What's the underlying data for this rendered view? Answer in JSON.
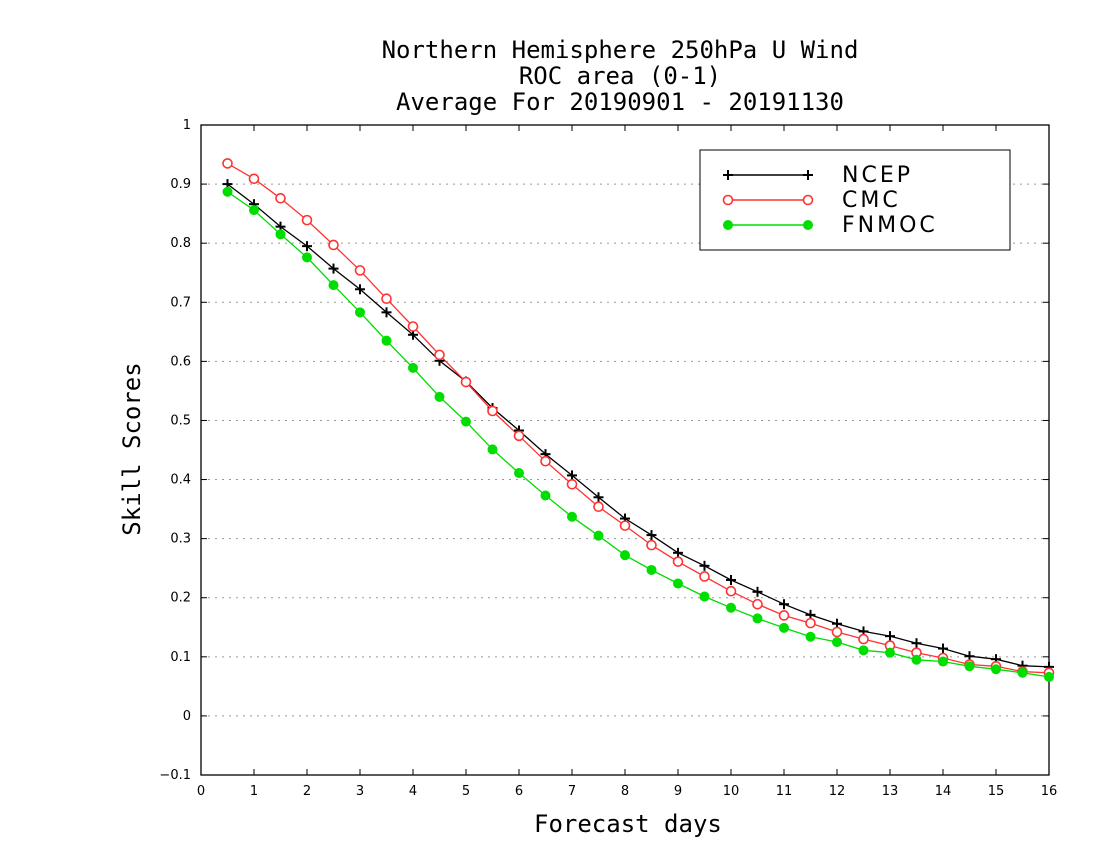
{
  "chart_data": {
    "type": "line",
    "title": [
      "Northern Hemisphere 250hPa U Wind",
      "ROC area (0-1)",
      "Average For 20190901 - 20191130"
    ],
    "xlabel": "Forecast days",
    "ylabel": "Skill Scores",
    "xlim": [
      0,
      16
    ],
    "ylim": [
      -0.1,
      1
    ],
    "xticks": [
      "0",
      "1",
      "2",
      "3",
      "4",
      "5",
      "6",
      "7",
      "8",
      "9",
      "10",
      "11",
      "12",
      "13",
      "14",
      "15",
      "16"
    ],
    "yticks": [
      "−0.1",
      "0",
      "0.1",
      "0.2",
      "0.3",
      "0.4",
      "0.5",
      "0.6",
      "0.7",
      "0.8",
      "0.9",
      "1"
    ],
    "grid": "horizontal dotted",
    "legend_position": "top-right",
    "x": [
      0.5,
      1,
      1.5,
      2,
      2.5,
      3,
      3.5,
      4,
      4.5,
      5,
      5.5,
      6,
      6.5,
      7,
      7.5,
      8,
      8.5,
      9,
      9.5,
      10,
      10.5,
      11,
      11.5,
      12,
      12.5,
      13,
      13.5,
      14,
      14.5,
      15,
      15.5,
      16
    ],
    "series": [
      {
        "name": "NCEP",
        "color": "#000000",
        "marker": "plus",
        "values": [
          0.9,
          0.866,
          0.828,
          0.795,
          0.757,
          0.722,
          0.683,
          0.645,
          0.601,
          0.566,
          0.521,
          0.483,
          0.443,
          0.407,
          0.37,
          0.334,
          0.306,
          0.276,
          0.254,
          0.23,
          0.21,
          0.189,
          0.171,
          0.156,
          0.143,
          0.135,
          0.123,
          0.114,
          0.101,
          0.096,
          0.085,
          0.083
        ]
      },
      {
        "name": "CMC",
        "color": "#ff3333",
        "marker": "open-circle",
        "values": [
          0.935,
          0.909,
          0.876,
          0.839,
          0.797,
          0.754,
          0.706,
          0.659,
          0.611,
          0.565,
          0.516,
          0.474,
          0.431,
          0.392,
          0.354,
          0.322,
          0.289,
          0.261,
          0.236,
          0.211,
          0.189,
          0.17,
          0.157,
          0.142,
          0.13,
          0.119,
          0.107,
          0.098,
          0.087,
          0.084,
          0.075,
          0.073
        ]
      },
      {
        "name": "FNMOC",
        "color": "#00dd00",
        "marker": "filled-circle",
        "values": [
          0.887,
          0.856,
          0.815,
          0.776,
          0.729,
          0.683,
          0.635,
          0.589,
          0.54,
          0.498,
          0.451,
          0.411,
          0.373,
          0.337,
          0.305,
          0.272,
          0.247,
          0.224,
          0.202,
          0.183,
          0.165,
          0.149,
          0.134,
          0.125,
          0.111,
          0.107,
          0.095,
          0.092,
          0.084,
          0.079,
          0.073,
          0.066
        ]
      }
    ]
  }
}
